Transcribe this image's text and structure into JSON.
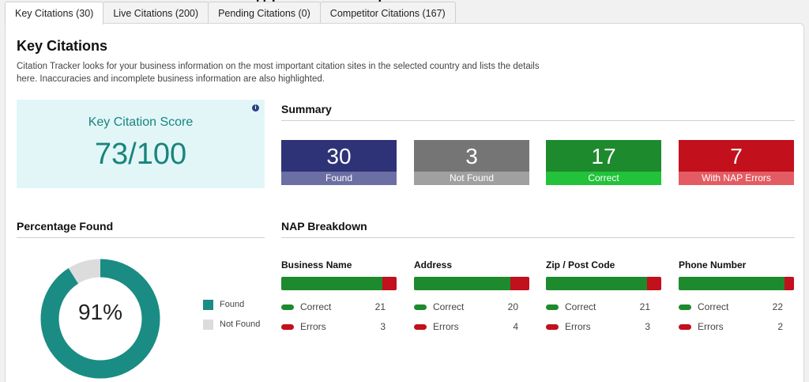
{
  "header": {
    "cutoff_title": "    [] (                     ) "
  },
  "tabs": [
    {
      "label": "Key Citations (30)",
      "active": true
    },
    {
      "label": "Live Citations (200)"
    },
    {
      "label": "Pending Citations (0)"
    },
    {
      "label": "Competitor Citations (167)"
    }
  ],
  "page": {
    "title": "Key Citations",
    "description": "Citation Tracker looks for your business information on the most important citation sites in the selected country and lists the details here. Inaccuracies and incomplete business information are also highlighted."
  },
  "score": {
    "label": "Key Citation Score",
    "value": "73/100",
    "info_icon": "info-icon"
  },
  "summary": {
    "heading": "Summary",
    "boxes": [
      {
        "value": "30",
        "label": "Found",
        "color": "#2e3378",
        "label_color": "#6c6fa3"
      },
      {
        "value": "3",
        "label": "Not Found",
        "color": "#757575",
        "label_color": "#a0a0a0"
      },
      {
        "value": "17",
        "label": "Correct",
        "color": "#1e8a2e",
        "label_color": "#22c23a"
      },
      {
        "value": "7",
        "label": "With NAP Errors",
        "color": "#c2101c",
        "label_color": "#e45c63"
      }
    ]
  },
  "percentage": {
    "heading": "Percentage Found",
    "value_text": "91%",
    "found_fraction": 0.91,
    "found_color": "#1a8c84",
    "not_found_color": "#dcdcdc",
    "legend": [
      {
        "label": "Found",
        "color": "#1a8c84"
      },
      {
        "label": "Not Found",
        "color": "#dcdcdc"
      }
    ]
  },
  "nap": {
    "heading": "NAP Breakdown",
    "correct_label": "Correct",
    "errors_label": "Errors",
    "correct_color": "#1e8a2e",
    "error_color": "#c2101c",
    "columns": [
      {
        "title": "Business Name",
        "correct": 21,
        "errors": 3
      },
      {
        "title": "Address",
        "correct": 20,
        "errors": 4
      },
      {
        "title": "Zip / Post Code",
        "correct": 21,
        "errors": 3
      },
      {
        "title": "Phone Number",
        "correct": 22,
        "errors": 2
      }
    ]
  }
}
